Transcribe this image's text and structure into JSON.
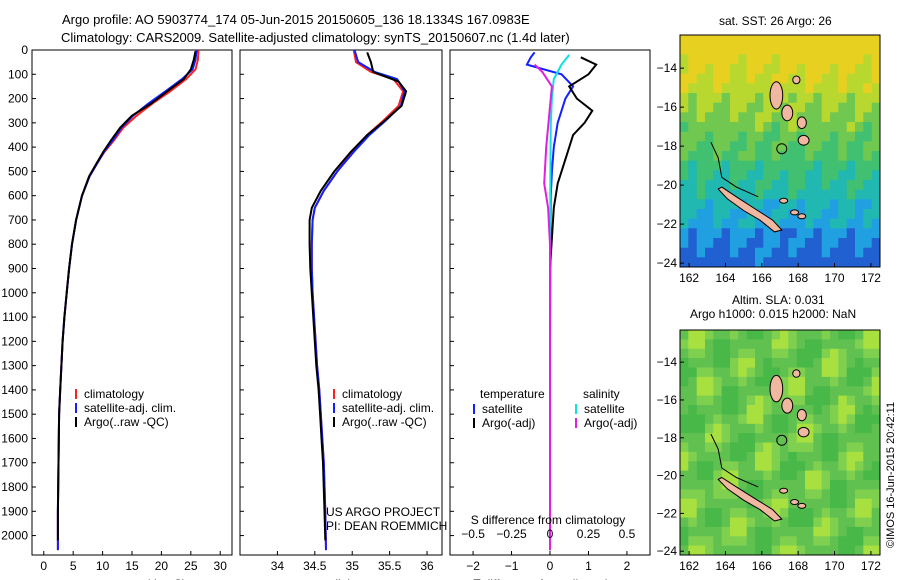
{
  "header": {
    "line1": "Argo profile: AO 5903774_174 05-Jun-2015 20150605_136 18.1334S 167.0983E",
    "line2": "Climatology: CARS2009. Satellite-adjusted climatology: synTS_20150607.nc (1.4d later)"
  },
  "colors": {
    "clim": "#ff2020",
    "sat": "#1020ff",
    "argo": "#000000",
    "sat_s": "#10e0e0",
    "argo_s": "#e020e0",
    "land": "#f0b8a0"
  },
  "chart_data": [
    {
      "type": "line",
      "id": "temperature",
      "xlabel": "temperature (deg C)",
      "xlim": [
        -2,
        32
      ],
      "ylim": [
        0,
        2080
      ],
      "xticks": [
        0,
        5,
        10,
        15,
        20,
        25,
        30
      ],
      "yticks": [
        0,
        100,
        200,
        300,
        400,
        500,
        600,
        700,
        800,
        900,
        1000,
        1100,
        1200,
        1300,
        1400,
        1500,
        1600,
        1700,
        1800,
        1900,
        2000
      ],
      "legend": [
        "climatology",
        "satellite-adj. clim.",
        "Argo(..raw -QC)"
      ],
      "series": [
        {
          "name": "climatology",
          "color": "#ff2020",
          "x": [
            26.3,
            26.2,
            25.8,
            24.2,
            21.5,
            18.5,
            15.8,
            13.5,
            12.0,
            10.3,
            9.0,
            7.8,
            6.5,
            5.5,
            4.8,
            4.3,
            3.9,
            3.5,
            3.2,
            3.0,
            2.8,
            2.6,
            2.5,
            2.4,
            2.4
          ],
          "y": [
            0,
            40,
            80,
            120,
            170,
            220,
            270,
            320,
            370,
            420,
            470,
            520,
            600,
            700,
            800,
            900,
            1000,
            1100,
            1200,
            1300,
            1400,
            1500,
            1700,
            1900,
            2060
          ]
        },
        {
          "name": "satellite",
          "color": "#1020ff",
          "x": [
            26.0,
            25.8,
            25.3,
            23.5,
            20.7,
            17.8,
            15.2,
            13.2,
            11.8,
            10.2,
            9.0,
            7.8,
            6.5,
            5.5,
            4.8,
            4.3,
            3.9,
            3.5,
            3.2,
            3.0,
            2.8,
            2.6,
            2.5,
            2.4,
            2.4
          ],
          "y": [
            0,
            40,
            80,
            120,
            170,
            220,
            270,
            320,
            370,
            420,
            470,
            520,
            600,
            700,
            800,
            900,
            1000,
            1100,
            1200,
            1300,
            1400,
            1500,
            1700,
            1900,
            2060
          ]
        },
        {
          "name": "argo",
          "color": "#000000",
          "x": [
            25.8,
            25.5,
            25.0,
            23.8,
            21.0,
            18.3,
            15.0,
            13.0,
            11.5,
            10.1,
            8.9,
            7.7,
            6.5,
            5.5,
            4.8,
            4.3,
            3.9,
            3.5,
            3.2,
            3.0,
            2.8,
            2.6,
            2.5,
            2.4,
            2.4
          ],
          "y": [
            5,
            40,
            80,
            120,
            170,
            220,
            270,
            320,
            370,
            420,
            470,
            520,
            600,
            700,
            800,
            900,
            1000,
            1100,
            1200,
            1300,
            1400,
            1500,
            1700,
            1900,
            2020
          ]
        }
      ]
    },
    {
      "type": "line",
      "id": "salinity",
      "xlabel": "salinity",
      "xlim": [
        33.5,
        36.2
      ],
      "ylim": [
        0,
        2080
      ],
      "xticks": [
        34,
        34.5,
        35,
        35.5,
        36
      ],
      "legend": [
        "climatology",
        "satellite-adj. clim.",
        "Argo(..raw -QC)"
      ],
      "series": [
        {
          "name": "climatology",
          "color": "#ff2020",
          "x": [
            35.02,
            35.05,
            35.25,
            35.55,
            35.68,
            35.62,
            35.42,
            35.2,
            35.0,
            34.8,
            34.62,
            34.5,
            34.47,
            34.46,
            34.46,
            34.47,
            34.49,
            34.51,
            34.53,
            34.56,
            34.58,
            34.6,
            34.62,
            34.64,
            34.65
          ],
          "y": [
            0,
            50,
            90,
            120,
            170,
            230,
            290,
            350,
            420,
            500,
            580,
            650,
            700,
            800,
            900,
            1000,
            1100,
            1200,
            1300,
            1400,
            1500,
            1600,
            1700,
            1900,
            2060
          ]
        },
        {
          "name": "satellite",
          "color": "#1020ff",
          "x": [
            35.03,
            35.08,
            35.3,
            35.6,
            35.7,
            35.65,
            35.45,
            35.23,
            35.02,
            34.8,
            34.62,
            34.5,
            34.47,
            34.46,
            34.46,
            34.47,
            34.49,
            34.51,
            34.53,
            34.56,
            34.58,
            34.6,
            34.62,
            34.64,
            34.65
          ],
          "y": [
            0,
            50,
            90,
            120,
            170,
            230,
            290,
            350,
            420,
            500,
            580,
            650,
            700,
            800,
            900,
            1000,
            1100,
            1200,
            1300,
            1400,
            1500,
            1600,
            1700,
            1900,
            2060
          ]
        },
        {
          "name": "argo",
          "color": "#000000",
          "x": [
            35.2,
            35.25,
            35.28,
            35.62,
            35.72,
            35.66,
            35.44,
            35.2,
            34.98,
            34.76,
            34.58,
            34.46,
            34.43,
            34.43,
            34.44,
            34.46,
            34.48,
            34.5,
            34.52,
            34.55,
            34.57,
            34.59,
            34.61,
            34.63,
            34.64
          ],
          "y": [
            10,
            50,
            90,
            130,
            170,
            230,
            290,
            350,
            420,
            500,
            580,
            650,
            700,
            800,
            900,
            1000,
            1100,
            1200,
            1300,
            1400,
            1500,
            1600,
            1700,
            1900,
            2020
          ]
        }
      ]
    },
    {
      "type": "line",
      "id": "difference",
      "xlabel": "T difference from climatology",
      "xlabel_top": "S difference from climatology",
      "xlim": [
        -2.6,
        2.6
      ],
      "ylim": [
        0,
        2080
      ],
      "xticks": [
        -2,
        -1,
        0,
        1,
        2
      ],
      "xticks_top": [
        -0.5,
        -0.25,
        0,
        0.25,
        0.5
      ],
      "legend_t": "temperature",
      "legend_s": "salinity",
      "legend_items": [
        "satellite",
        "Argo(-adj)",
        "satellite",
        "Argo(-adj)"
      ],
      "series": [
        {
          "name": "T satellite",
          "color": "#1020ff",
          "x": [
            -0.4,
            -0.5,
            -0.6,
            0.3,
            0.6,
            0.4,
            0.2,
            0.1,
            0.05,
            0.02,
            0.01,
            0,
            0
          ],
          "y": [
            10,
            30,
            60,
            100,
            150,
            200,
            300,
            400,
            500,
            600,
            800,
            1200,
            2060
          ]
        },
        {
          "name": "T argo",
          "color": "#000000",
          "x": [
            0.8,
            1.2,
            1.0,
            0.5,
            0.7,
            1.1,
            0.9,
            0.6,
            0.4,
            0.2,
            0.1,
            0,
            0
          ],
          "y": [
            30,
            60,
            100,
            150,
            200,
            250,
            300,
            350,
            450,
            550,
            650,
            900,
            2060
          ]
        },
        {
          "name": "S satellite",
          "color": "#10e0e0",
          "x": [
            0.5,
            0.3,
            0.1,
            0.05,
            0.02,
            0.01,
            0,
            0
          ],
          "y": [
            20,
            60,
            120,
            200,
            300,
            500,
            1000,
            2060
          ]
        },
        {
          "name": "S argo",
          "color": "#e020e0",
          "x": [
            -0.4,
            -0.2,
            0.05,
            -0.1,
            -0.15,
            -0.05,
            0,
            0
          ],
          "y": [
            60,
            90,
            150,
            400,
            550,
            650,
            800,
            2060
          ]
        }
      ]
    }
  ],
  "credit": {
    "line1": "US ARGO PROJECT",
    "line2": "PI: DEAN ROEMMICH"
  },
  "maps": {
    "sst": {
      "title": "sat. SST: 26 Argo: 26"
    },
    "sla": {
      "title1": "Altim. SLA: 0.031",
      "title2": "Argo h1000: 0.015 h2000: NaN"
    },
    "xticks": [
      162,
      164,
      166,
      168,
      170,
      172
    ],
    "yticks": [
      -14,
      -16,
      -18,
      -20,
      -22,
      -24
    ],
    "xlim": [
      161.5,
      172.5
    ],
    "ylim": [
      -24.2,
      -12.3
    ]
  },
  "stamp": "©IMOS 16-Jun-2015 20:42:11"
}
